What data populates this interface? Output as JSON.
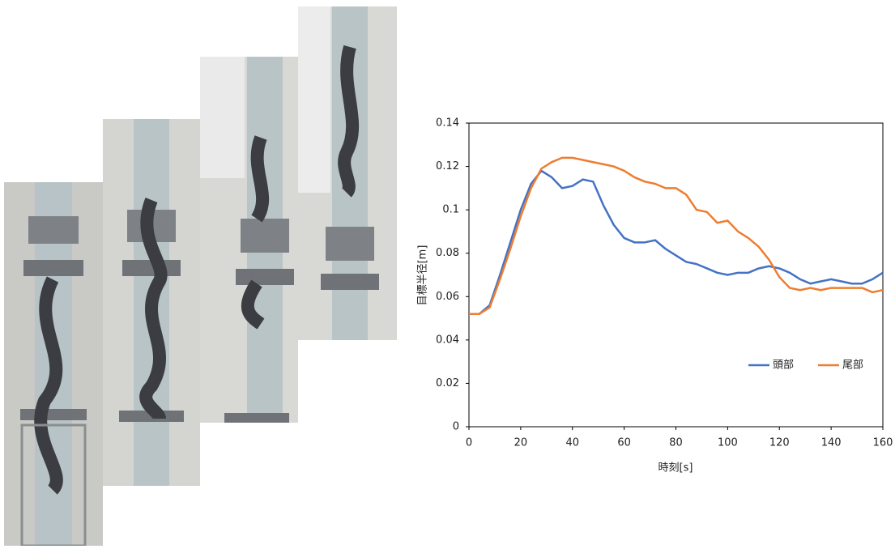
{
  "chart_data": {
    "type": "line",
    "xlabel": "時刻[s]",
    "ylabel": "目標半径[m]",
    "x": [
      0,
      4,
      8,
      12,
      16,
      20,
      24,
      28,
      32,
      36,
      40,
      44,
      48,
      52,
      56,
      60,
      64,
      68,
      72,
      76,
      80,
      84,
      88,
      92,
      96,
      100,
      104,
      108,
      112,
      116,
      120,
      124,
      128,
      132,
      136,
      140,
      144,
      148,
      152,
      156,
      160
    ],
    "series": [
      {
        "name": "頭部",
        "color": "#4472c4",
        "values": [
          0.052,
          0.052,
          0.056,
          0.07,
          0.085,
          0.1,
          0.112,
          0.118,
          0.115,
          0.11,
          0.111,
          0.114,
          0.113,
          0.102,
          0.093,
          0.087,
          0.085,
          0.085,
          0.086,
          0.082,
          0.079,
          0.076,
          0.075,
          0.073,
          0.071,
          0.07,
          0.071,
          0.071,
          0.073,
          0.074,
          0.073,
          0.071,
          0.068,
          0.066,
          0.067,
          0.068,
          0.067,
          0.066,
          0.066,
          0.068,
          0.071
        ]
      },
      {
        "name": "尾部",
        "color": "#ed7d31",
        "values": [
          0.052,
          0.052,
          0.055,
          0.068,
          0.082,
          0.097,
          0.11,
          0.119,
          0.122,
          0.124,
          0.124,
          0.123,
          0.122,
          0.121,
          0.12,
          0.118,
          0.115,
          0.113,
          0.112,
          0.11,
          0.11,
          0.107,
          0.1,
          0.099,
          0.094,
          0.095,
          0.09,
          0.087,
          0.083,
          0.077,
          0.069,
          0.064,
          0.063,
          0.064,
          0.063,
          0.064,
          0.064,
          0.064,
          0.064,
          0.062,
          0.063
        ]
      }
    ],
    "xlim": [
      0,
      160
    ],
    "xticks": [
      0,
      20,
      40,
      60,
      80,
      100,
      120,
      140,
      160
    ],
    "ylim": [
      0,
      0.14
    ],
    "yticks": [
      0,
      0.02,
      0.04,
      0.06,
      0.08,
      0.1,
      0.12,
      0.14
    ],
    "grid": false,
    "legend": "lower right"
  }
}
